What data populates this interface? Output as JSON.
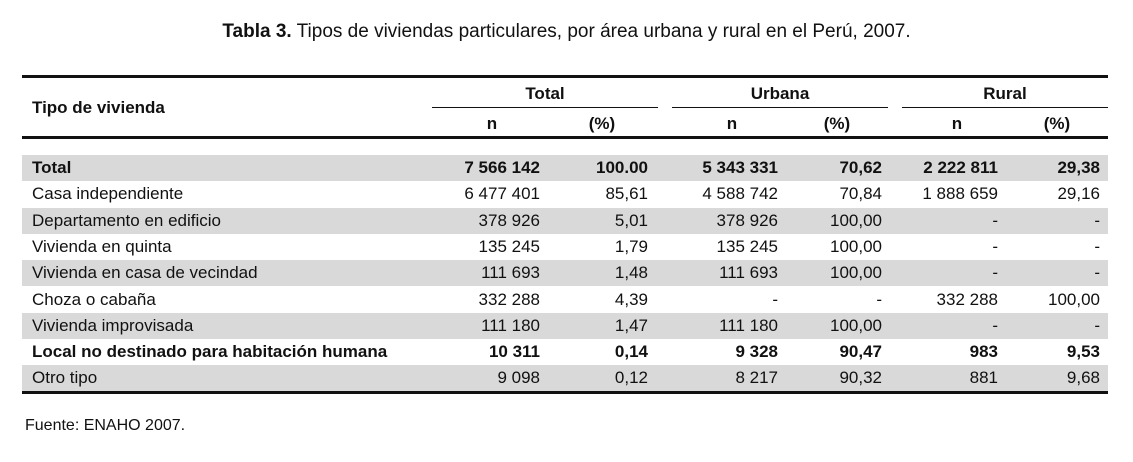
{
  "caption": {
    "label": "Tabla 3.",
    "text": "Tipos de viviendas particulares, por área urbana y rural en el Perú, 2007."
  },
  "table": {
    "row_header": "Tipo de vivienda",
    "groups": [
      "Total",
      "Urbana",
      "Rural"
    ],
    "subheaders": [
      "n",
      "(%)",
      "n",
      "(%)",
      "n",
      "(%)"
    ],
    "rows": [
      {
        "label": "Total",
        "bold": true,
        "shaded": true,
        "values": [
          "7 566 142",
          "100.00",
          "5 343 331",
          "70,62",
          "2 222 811",
          "29,38"
        ]
      },
      {
        "label": "Casa independiente",
        "bold": false,
        "shaded": false,
        "values": [
          "6 477 401",
          "85,61",
          "4 588 742",
          "70,84",
          "1 888 659",
          "29,16"
        ]
      },
      {
        "label": "Departamento en edificio",
        "bold": false,
        "shaded": true,
        "values": [
          "378 926",
          "5,01",
          "378 926",
          "100,00",
          "-",
          "-"
        ]
      },
      {
        "label": "Vivienda en quinta",
        "bold": false,
        "shaded": false,
        "values": [
          "135 245",
          "1,79",
          "135 245",
          "100,00",
          "-",
          "-"
        ]
      },
      {
        "label": "Vivienda en casa de vecindad",
        "bold": false,
        "shaded": true,
        "values": [
          "111 693",
          "1,48",
          "111 693",
          "100,00",
          "-",
          "-"
        ]
      },
      {
        "label": "Choza o cabaña",
        "bold": false,
        "shaded": false,
        "values": [
          "332 288",
          "4,39",
          "-",
          "-",
          "332 288",
          "100,00"
        ]
      },
      {
        "label": "Vivienda improvisada",
        "bold": false,
        "shaded": true,
        "values": [
          "111 180",
          "1,47",
          "111 180",
          "100,00",
          "-",
          "-"
        ]
      },
      {
        "label": "Local no destinado para habitación humana",
        "bold": true,
        "shaded": false,
        "values": [
          "10 311",
          "0,14",
          "9 328",
          "90,47",
          "983",
          "9,53"
        ]
      },
      {
        "label": "Otro tipo",
        "bold": false,
        "shaded": true,
        "values": [
          "9 098",
          "0,12",
          "8 217",
          "90,32",
          "881",
          "9,68"
        ]
      }
    ]
  },
  "source": "Fuente: ENAHO 2007."
}
